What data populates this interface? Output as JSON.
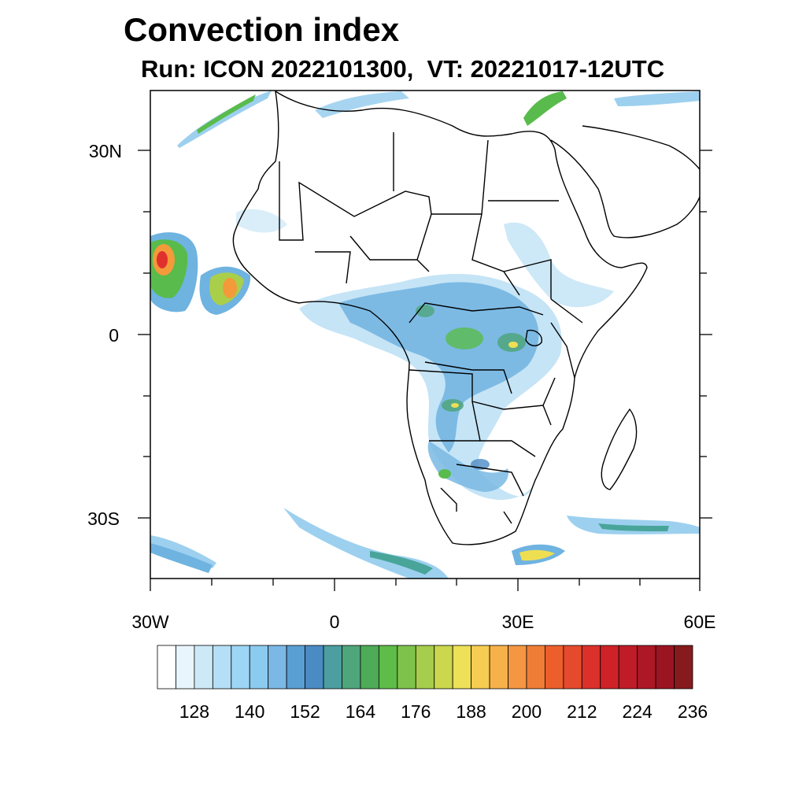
{
  "header": {
    "title": "Convection index",
    "subtitle": "Run: ICON 2022101300,  VT: 20221017-12UTC"
  },
  "map": {
    "lat_labels": [
      "30N",
      "0",
      "30S"
    ],
    "lon_labels": [
      "30W",
      "0",
      "30E",
      "60E"
    ],
    "colors": {
      "land_border": "#000000",
      "low": "#c9e6f6",
      "mid": "#6fb6e2",
      "blue": "#4a93c9",
      "teal": "#49a59a",
      "green": "#59bb4c",
      "lime": "#a9cf4a",
      "yellow": "#eedf52",
      "orange": "#f39a3a",
      "red": "#e0302d"
    }
  },
  "colorbar": {
    "tick_labels": [
      "128",
      "140",
      "152",
      "164",
      "176",
      "188",
      "200",
      "212",
      "224",
      "236"
    ],
    "colors": [
      "#ffffff",
      "#e9f5fc",
      "#cde9f8",
      "#b5dff6",
      "#9dd6f4",
      "#8ccbf0",
      "#7bb8e6",
      "#5a9fd3",
      "#4b8bc4",
      "#4c9ea0",
      "#4fa57c",
      "#4eab57",
      "#5ebc48",
      "#7fc24b",
      "#a6cd4b",
      "#cbd74c",
      "#eee057",
      "#f7cc52",
      "#f7b14b",
      "#f49642",
      "#f07d36",
      "#ec5f2c",
      "#e44a2b",
      "#dc302b",
      "#cf2228",
      "#bf1c27",
      "#ad1826",
      "#9b1422",
      "#861a1c"
    ]
  }
}
